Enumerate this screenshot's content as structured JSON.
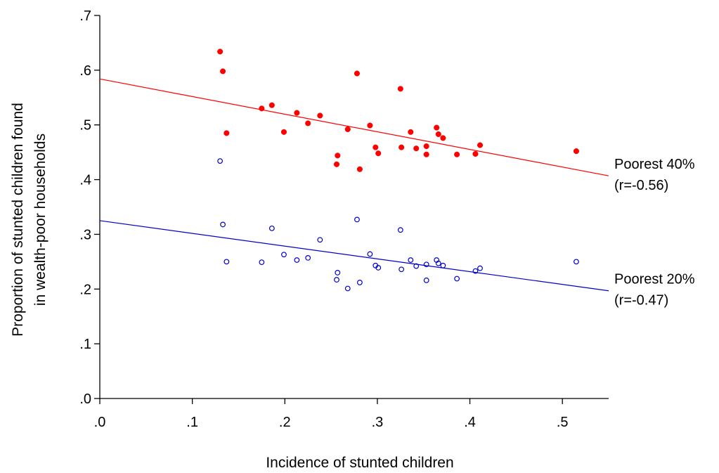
{
  "chart_data": {
    "type": "scatter",
    "title": "",
    "xlabel": "Incidence of stunted children",
    "ylabel_lines": [
      "Proportion of stunted children found",
      "in wealth-poor households"
    ],
    "xlim": [
      0,
      0.55
    ],
    "ylim": [
      0,
      0.7
    ],
    "x_ticks": [
      {
        "value": 0.0,
        "label": ".0"
      },
      {
        "value": 0.1,
        "label": ".1"
      },
      {
        "value": 0.2,
        "label": ".2"
      },
      {
        "value": 0.3,
        "label": ".3"
      },
      {
        "value": 0.4,
        "label": ".4"
      },
      {
        "value": 0.5,
        "label": ".5"
      }
    ],
    "y_ticks": [
      {
        "value": 0.0,
        "label": ".0"
      },
      {
        "value": 0.1,
        "label": ".1"
      },
      {
        "value": 0.2,
        "label": ".2"
      },
      {
        "value": 0.3,
        "label": ".3"
      },
      {
        "value": 0.4,
        "label": ".4"
      },
      {
        "value": 0.5,
        "label": ".5"
      },
      {
        "value": 0.6,
        "label": ".6"
      },
      {
        "value": 0.7,
        "label": ".7"
      }
    ],
    "grid": false,
    "series": [
      {
        "name": "Poorest 40%",
        "annotation": [
          "Poorest 40%",
          "(r=-0.56)"
        ],
        "color": "#ff0000",
        "marker": "filled-circle",
        "points": [
          [
            0.13,
            0.634
          ],
          [
            0.133,
            0.598
          ],
          [
            0.137,
            0.485
          ],
          [
            0.175,
            0.53
          ],
          [
            0.186,
            0.536
          ],
          [
            0.199,
            0.487
          ],
          [
            0.213,
            0.522
          ],
          [
            0.225,
            0.503
          ],
          [
            0.238,
            0.517
          ],
          [
            0.256,
            0.428
          ],
          [
            0.257,
            0.444
          ],
          [
            0.268,
            0.492
          ],
          [
            0.278,
            0.594
          ],
          [
            0.281,
            0.419
          ],
          [
            0.292,
            0.499
          ],
          [
            0.298,
            0.459
          ],
          [
            0.301,
            0.448
          ],
          [
            0.325,
            0.566
          ],
          [
            0.326,
            0.459
          ],
          [
            0.336,
            0.487
          ],
          [
            0.342,
            0.457
          ],
          [
            0.353,
            0.461
          ],
          [
            0.353,
            0.446
          ],
          [
            0.364,
            0.495
          ],
          [
            0.366,
            0.483
          ],
          [
            0.371,
            0.476
          ],
          [
            0.386,
            0.446
          ],
          [
            0.406,
            0.447
          ],
          [
            0.411,
            0.463
          ],
          [
            0.515,
            0.452
          ]
        ],
        "fit": {
          "intercept": 0.584,
          "slope": -0.322
        }
      },
      {
        "name": "Poorest 20%",
        "annotation": [
          "Poorest 20%",
          "(r=-0.47)"
        ],
        "color": "#0000cc",
        "marker": "hollow-circle",
        "points": [
          [
            0.13,
            0.434
          ],
          [
            0.133,
            0.318
          ],
          [
            0.137,
            0.25
          ],
          [
            0.175,
            0.249
          ],
          [
            0.186,
            0.311
          ],
          [
            0.199,
            0.263
          ],
          [
            0.213,
            0.253
          ],
          [
            0.225,
            0.257
          ],
          [
            0.238,
            0.29
          ],
          [
            0.256,
            0.217
          ],
          [
            0.257,
            0.23
          ],
          [
            0.268,
            0.201
          ],
          [
            0.278,
            0.327
          ],
          [
            0.281,
            0.212
          ],
          [
            0.292,
            0.264
          ],
          [
            0.298,
            0.243
          ],
          [
            0.301,
            0.239
          ],
          [
            0.325,
            0.308
          ],
          [
            0.326,
            0.236
          ],
          [
            0.336,
            0.253
          ],
          [
            0.342,
            0.242
          ],
          [
            0.353,
            0.245
          ],
          [
            0.353,
            0.216
          ],
          [
            0.364,
            0.253
          ],
          [
            0.366,
            0.247
          ],
          [
            0.371,
            0.243
          ],
          [
            0.386,
            0.219
          ],
          [
            0.406,
            0.233
          ],
          [
            0.411,
            0.238
          ],
          [
            0.515,
            0.25
          ]
        ],
        "fit": {
          "intercept": 0.325,
          "slope": -0.233
        }
      }
    ]
  }
}
